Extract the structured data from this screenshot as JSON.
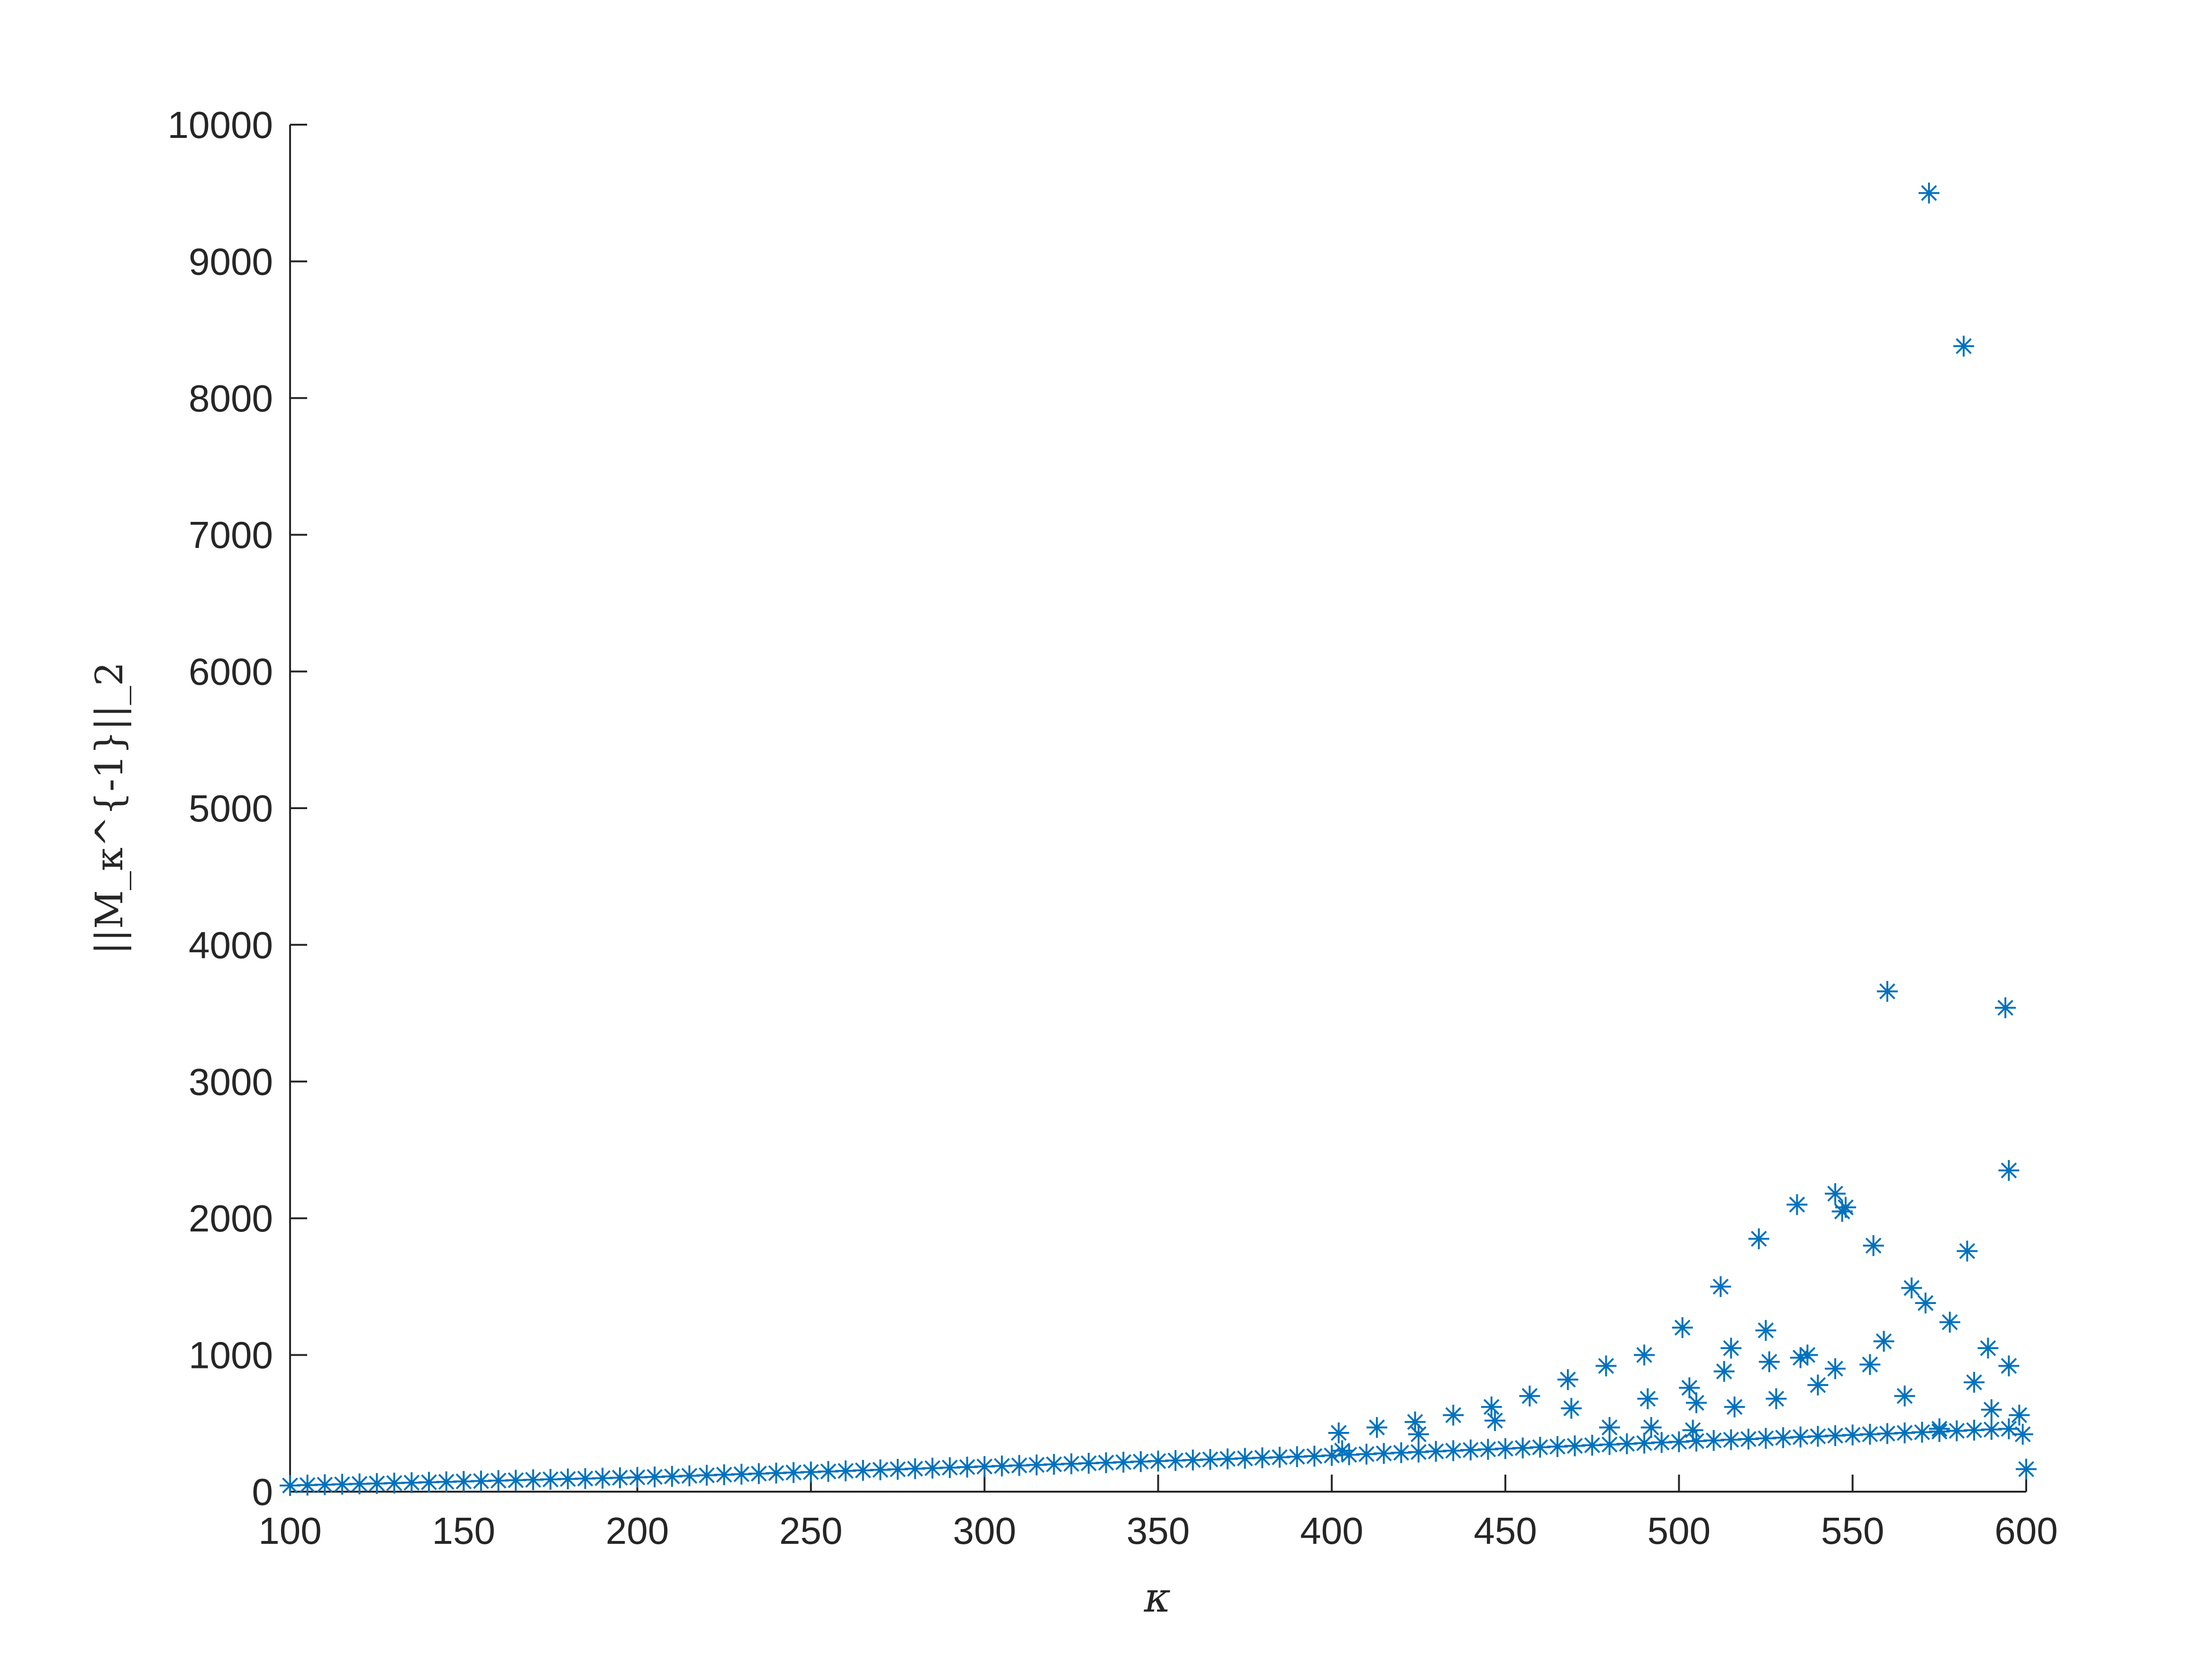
{
  "chart_data": {
    "type": "scatter",
    "title": "",
    "xlabel": "κ",
    "ylabel": "||M_κ^{-1}||_2",
    "xlim": [
      100,
      600
    ],
    "ylim": [
      0,
      10000
    ],
    "x_ticks": [
      "100",
      "150",
      "200",
      "250",
      "300",
      "350",
      "400",
      "450",
      "500",
      "550",
      "600"
    ],
    "y_ticks": [
      "0",
      "1000",
      "2000",
      "3000",
      "4000",
      "5000",
      "6000",
      "7000",
      "8000",
      "9000",
      "10000"
    ],
    "grid": false,
    "legend": "none",
    "marker": "asterisk",
    "marker_color": "#0072BD",
    "series": [
      {
        "x": [
          100,
          105,
          110,
          115,
          120,
          125,
          130,
          135,
          140,
          145,
          150,
          155,
          160,
          165,
          170,
          175,
          180,
          185,
          190,
          195,
          200,
          205,
          210,
          215,
          220,
          225,
          230,
          235,
          240,
          245,
          250,
          255,
          260,
          265,
          270,
          275,
          280,
          285,
          290,
          295,
          300,
          305,
          310,
          315,
          320,
          325,
          330,
          335,
          340,
          345,
          350,
          355,
          360,
          365,
          370,
          375,
          380,
          385,
          390,
          395,
          400,
          405,
          410,
          415,
          420,
          425,
          430,
          435,
          440,
          445,
          450,
          455,
          460,
          465,
          470,
          475,
          480,
          485,
          490,
          495,
          500,
          505,
          510,
          515,
          520,
          525,
          530,
          535,
          540,
          545,
          550,
          555,
          560,
          565,
          570,
          575,
          580,
          585,
          590,
          595,
          600,
          402,
          413,
          424,
          435,
          446,
          457,
          468,
          479,
          490,
          501,
          512,
          523,
          534,
          545,
          556,
          567,
          578,
          589,
          598,
          403,
          425,
          447,
          469,
          491,
          503,
          513,
          526,
          537,
          547,
          559,
          571,
          583,
          595,
          505,
          515,
          525,
          535,
          545,
          555,
          565,
          575,
          585,
          590,
          480,
          492,
          504,
          516,
          528,
          540,
          548,
          560,
          572,
          582,
          594
        ],
        "y": [
          45,
          48,
          51,
          54,
          57,
          60,
          63,
          66,
          69,
          72,
          75,
          78,
          81,
          84,
          87,
          90,
          93,
          96,
          99,
          102,
          105,
          108,
          112,
          116,
          120,
          124,
          128,
          132,
          136,
          140,
          144,
          148,
          152,
          156,
          160,
          164,
          168,
          172,
          176,
          180,
          184,
          188,
          192,
          196,
          200,
          204,
          208,
          212,
          216,
          220,
          224,
          228,
          232,
          236,
          240,
          244,
          248,
          252,
          256,
          260,
          265,
          270,
          275,
          280,
          285,
          290,
          295,
          300,
          305,
          310,
          315,
          320,
          325,
          330,
          335,
          340,
          345,
          350,
          355,
          360,
          365,
          370,
          375,
          380,
          385,
          390,
          395,
          400,
          405,
          410,
          415,
          420,
          425,
          430,
          435,
          440,
          445,
          450,
          455,
          460,
          165,
          430,
          470,
          510,
          560,
          620,
          700,
          820,
          920,
          1000,
          1200,
          1500,
          1850,
          2100,
          2180,
          1800,
          1490,
          1240,
          1050,
          560,
          300,
          420,
          520,
          610,
          680,
          760,
          880,
          950,
          1000,
          2050,
          1100,
          1380,
          1760,
          920,
          650,
          1050,
          1180,
          980,
          900,
          930,
          700,
          460,
          800,
          600,
          470,
          470,
          450,
          620,
          680,
          780,
          2080,
          3660,
          9500,
          8380,
          3540
        ]
      }
    ],
    "extra_points": {
      "x": [
        595,
        599
      ],
      "y": [
        2350,
        420
      ]
    }
  }
}
